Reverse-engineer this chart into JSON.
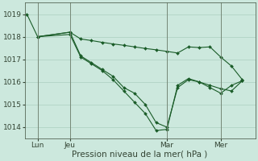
{
  "background_color": "#cce8dd",
  "plot_bg_color": "#cce8dd",
  "grid_color": "#aacfbf",
  "line_color": "#1a5c28",
  "marker_color": "#1a5c28",
  "ylim": [
    1013.5,
    1019.5
  ],
  "yticks": [
    1014,
    1015,
    1016,
    1017,
    1018,
    1019
  ],
  "xlabel": "Pression niveau de la mer( hPa )",
  "xlabel_fontsize": 7.5,
  "tick_fontsize": 6.5,
  "xtick_labels": [
    "Lun",
    "Jeu",
    "Mar",
    "Mer"
  ],
  "xtick_positions": [
    1,
    4,
    13,
    18
  ],
  "vline_positions": [
    1,
    4,
    13,
    18
  ],
  "series1_x": [
    0,
    1,
    4,
    5,
    6,
    7,
    8,
    9,
    10,
    11,
    12,
    13,
    14,
    15,
    16,
    17,
    18,
    19,
    20
  ],
  "series1_y": [
    1019.0,
    1018.0,
    1018.2,
    1017.9,
    1017.83,
    1017.75,
    1017.68,
    1017.62,
    1017.55,
    1017.48,
    1017.42,
    1017.35,
    1017.28,
    1017.55,
    1017.52,
    1017.55,
    1017.1,
    1016.7,
    1016.1
  ],
  "series2_x": [
    1,
    4,
    5,
    6,
    7,
    8,
    9,
    10,
    11,
    12,
    13,
    14,
    15,
    16,
    17,
    18,
    19,
    20
  ],
  "series2_y": [
    1018.0,
    1018.2,
    1017.15,
    1016.85,
    1016.55,
    1016.25,
    1015.75,
    1015.5,
    1015.0,
    1014.2,
    1014.0,
    1015.75,
    1016.1,
    1016.0,
    1015.85,
    1015.7,
    1015.6,
    1016.05
  ],
  "series3_x": [
    1,
    4,
    5,
    6,
    7,
    8,
    9,
    10,
    11,
    12,
    13,
    14,
    15,
    16,
    17,
    18,
    19,
    20
  ],
  "series3_y": [
    1018.0,
    1018.1,
    1017.1,
    1016.8,
    1016.5,
    1016.1,
    1015.6,
    1015.1,
    1014.6,
    1013.85,
    1013.9,
    1015.85,
    1016.15,
    1016.0,
    1015.75,
    1015.5,
    1015.85,
    1016.05
  ],
  "xlim": [
    -0.2,
    21.2
  ]
}
